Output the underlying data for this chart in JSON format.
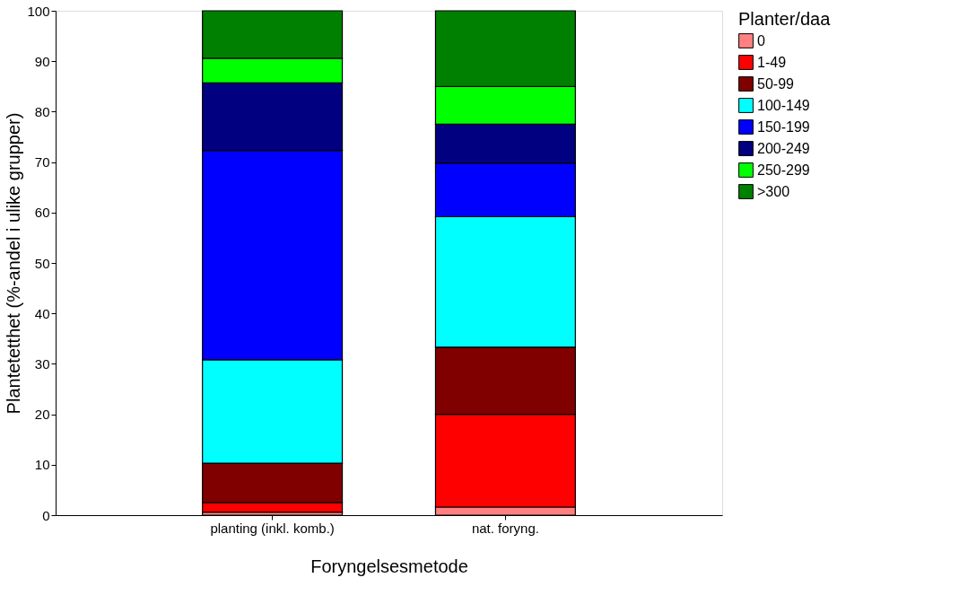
{
  "chart_data": {
    "type": "bar",
    "stacked": true,
    "xlabel": "Foryngelsesmetode",
    "ylabel": "Plantetetthet (%-andel i ulike grupper)",
    "legend_title": "Planter/daa",
    "legend": "right",
    "categories": [
      "planting (inkl. komb.)",
      "nat. foryng."
    ],
    "ylim": [
      0,
      100
    ],
    "yticks": [
      0,
      10,
      20,
      30,
      40,
      50,
      60,
      70,
      80,
      90,
      100
    ],
    "grid": false,
    "series": [
      {
        "name": "0",
        "color": "#ff8080",
        "values": [
          0.6,
          1.6
        ]
      },
      {
        "name": "1-49",
        "color": "#ff0000",
        "values": [
          1.9,
          18.4
        ]
      },
      {
        "name": "50-99",
        "color": "#800000",
        "values": [
          7.8,
          13.3
        ]
      },
      {
        "name": "100-149",
        "color": "#00ffff",
        "values": [
          20.5,
          25.9
        ]
      },
      {
        "name": "150-199",
        "color": "#0000ff",
        "values": [
          41.5,
          10.6
        ]
      },
      {
        "name": "200-249",
        "color": "#000080",
        "values": [
          13.4,
          7.7
        ]
      },
      {
        "name": "250-299",
        "color": "#00ff00",
        "values": [
          4.9,
          7.5
        ]
      },
      {
        "name": ">300",
        "color": "#008000",
        "values": [
          9.4,
          15.0
        ]
      }
    ]
  }
}
